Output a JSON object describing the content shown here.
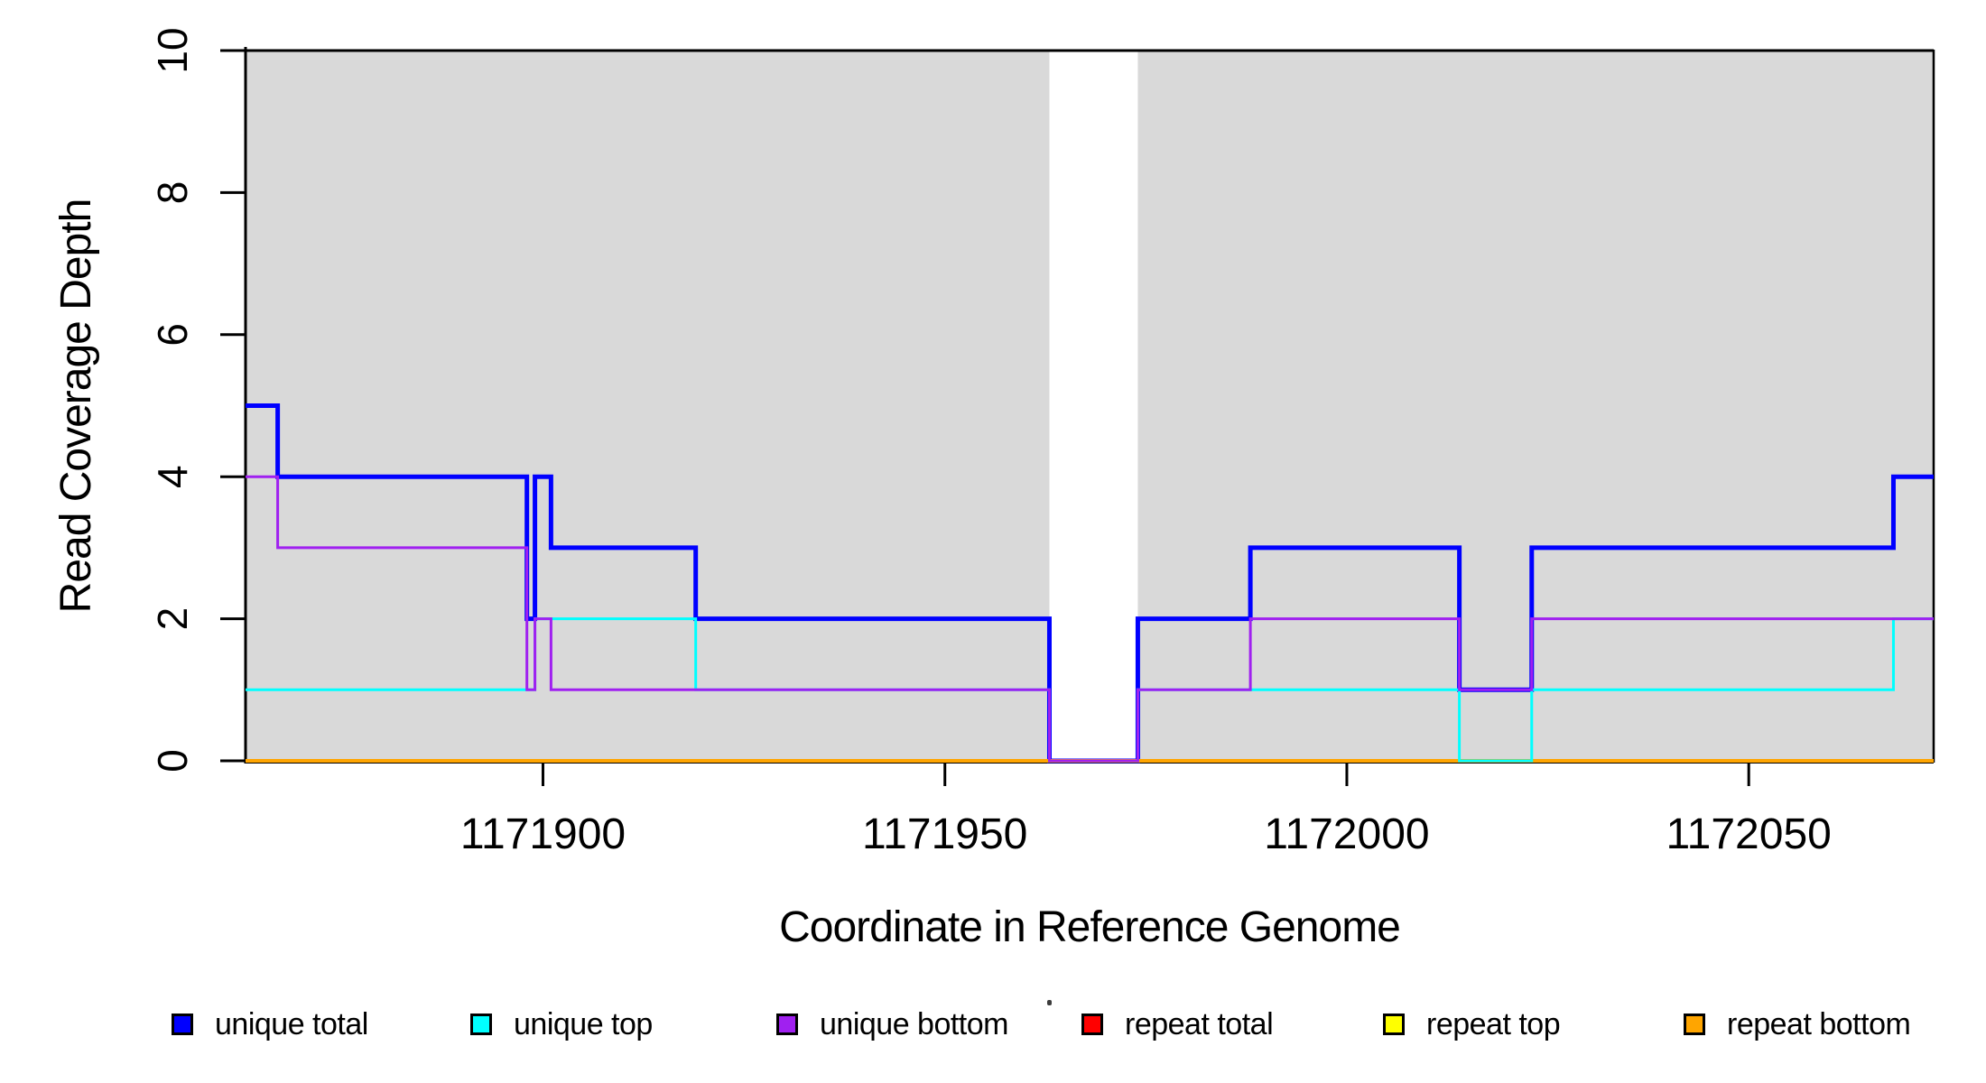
{
  "figure_background": "#FFFFFF",
  "chart_data": {
    "type": "line",
    "subtype": "step-after-coverage",
    "title": "",
    "xlabel": "Coordinate in Reference Genome",
    "ylabel": "Read Coverage Depth",
    "xlim": [
      1171863,
      1172073
    ],
    "ylim": [
      0,
      10
    ],
    "grid": false,
    "x_ticks": {
      "values": [
        1171900,
        1171950,
        1172000,
        1172050
      ],
      "labels": [
        "1171900",
        "1171950",
        "1172000",
        "1172050"
      ]
    },
    "y_ticks": {
      "values": [
        0,
        2,
        4,
        6,
        8,
        10
      ],
      "labels": [
        "0",
        "2",
        "4",
        "6",
        "8",
        "10"
      ]
    },
    "shaded_regions": {
      "color": "#D9D9D9",
      "border_color": "#000000",
      "intervals": [
        [
          1171863,
          1171963
        ],
        [
          1171974,
          1172073
        ]
      ]
    },
    "series": [
      {
        "name": "unique total",
        "color": "#0000FF",
        "line_width": 5,
        "points": [
          [
            1171863,
            5
          ],
          [
            1171867,
            4
          ],
          [
            1171898,
            2
          ],
          [
            1171899,
            4
          ],
          [
            1171901,
            3
          ],
          [
            1171919,
            2
          ],
          [
            1171963,
            0
          ],
          [
            1171974,
            2
          ],
          [
            1171988,
            3
          ],
          [
            1172014,
            1
          ],
          [
            1172023,
            3
          ],
          [
            1172068,
            4
          ],
          [
            1172073,
            4
          ]
        ]
      },
      {
        "name": "repeat total",
        "color": "#FF0000",
        "line_width": 3,
        "points": [
          [
            1171863,
            0
          ],
          [
            1172073,
            0
          ]
        ]
      },
      {
        "name": "repeat top",
        "color": "#FFFF00",
        "line_width": 3,
        "points": [
          [
            1171863,
            0
          ],
          [
            1172073,
            0
          ]
        ]
      },
      {
        "name": "repeat bottom",
        "color": "#FFA500",
        "line_width": 4,
        "points": [
          [
            1171863,
            0
          ],
          [
            1172073,
            0
          ]
        ]
      },
      {
        "name": "unique top",
        "color": "#00FFFF",
        "line_width": 3,
        "points": [
          [
            1171863,
            1
          ],
          [
            1171899,
            2
          ],
          [
            1171919,
            1
          ],
          [
            1171963,
            0
          ],
          [
            1171974,
            1
          ],
          [
            1172014,
            0
          ],
          [
            1172023,
            1
          ],
          [
            1172068,
            2
          ],
          [
            1172073,
            2
          ]
        ]
      },
      {
        "name": "unique bottom",
        "color": "#A020F0",
        "line_width": 3,
        "points": [
          [
            1171863,
            4
          ],
          [
            1171867,
            3
          ],
          [
            1171898,
            1
          ],
          [
            1171899,
            2
          ],
          [
            1171901,
            1
          ],
          [
            1171963,
            0
          ],
          [
            1171974,
            1
          ],
          [
            1171988,
            2
          ],
          [
            1172014,
            1
          ],
          [
            1172023,
            2
          ],
          [
            1172073,
            2
          ]
        ]
      }
    ],
    "legend": {
      "position": "bottom",
      "items": [
        {
          "label": "unique total",
          "color": "#0000FF"
        },
        {
          "label": "unique top",
          "color": "#00FFFF"
        },
        {
          "label": "unique bottom",
          "color": "#A020F0"
        },
        {
          "label": "repeat total",
          "color": "#FF0000"
        },
        {
          "label": "repeat top",
          "color": "#FFFF00"
        },
        {
          "label": "repeat bottom",
          "color": "#FFA500"
        }
      ]
    },
    "annotations": [
      {
        "type": "dot",
        "note": "small stray dot left of repeat-total legend swatch"
      }
    ]
  }
}
